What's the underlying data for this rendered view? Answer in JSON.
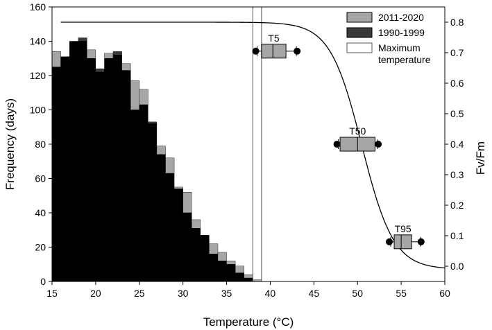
{
  "chart_data": {
    "type": "bar",
    "xlabel": "Temperature (°C)",
    "ylabel": "Frequency (days)",
    "y2label": "Fv/Fm",
    "xlim": [
      15,
      60
    ],
    "ylim": [
      0,
      160
    ],
    "y2lim": [
      -0.05,
      0.85
    ],
    "xticks": [
      15,
      20,
      25,
      30,
      35,
      40,
      45,
      50,
      55,
      60
    ],
    "yticks": [
      0,
      20,
      40,
      60,
      80,
      100,
      120,
      140,
      160
    ],
    "y2ticks": [
      "0.0",
      "0.1",
      "0.2",
      "0.3",
      "0.4",
      "0.5",
      "0.6",
      "0.7",
      "0.8"
    ],
    "legend": {
      "position": "top-right",
      "items": [
        {
          "label": "2011-2020",
          "color": "#a6a6a6",
          "kind": "bar"
        },
        {
          "label": "1990-1999",
          "color": "#3a3a3a",
          "kind": "bar"
        },
        {
          "label": "Maximum\ntemperature",
          "color": "#ffffff",
          "kind": "line"
        }
      ]
    },
    "bins_x": [
      15.5,
      16.5,
      17.5,
      18.5,
      19.5,
      20.5,
      21.5,
      22.5,
      23.5,
      24.5,
      25.5,
      26.5,
      27.5,
      28.5,
      29.5,
      30.5,
      31.5,
      32.5,
      33.5,
      34.5,
      35.5,
      36.5,
      37.5,
      38.5
    ],
    "series": [
      {
        "name": "2011-2020",
        "color": "#a6a6a6",
        "values": [
          134,
          131,
          140,
          140,
          135,
          122,
          133,
          132,
          127,
          117,
          112,
          92,
          79,
          72,
          55,
          52,
          36,
          27,
          22,
          17,
          12,
          9,
          4,
          1
        ]
      },
      {
        "name": "1990-1999",
        "color": "#3a3a3a",
        "values": [
          125,
          131,
          140,
          142,
          130,
          124,
          130,
          134,
          123,
          100,
          103,
          93,
          74,
          63,
          54,
          40,
          31,
          27,
          16,
          12,
          10,
          5,
          2,
          0
        ]
      }
    ],
    "overlap_color": "#000000",
    "max_temperature_lines": [
      38.0,
      39.0
    ],
    "curve": {
      "axis": "y2",
      "top": 0.8,
      "bottom": -0.01,
      "midpoint": 50.5,
      "slope": 0.55,
      "x_start": 16,
      "x_end": 60
    },
    "boxplots": [
      {
        "label": "T5",
        "whisker_low": 38.5,
        "q1": 39.0,
        "median": 40.3,
        "q3": 41.8,
        "whisker_high": 43.0,
        "y": 0.705
      },
      {
        "label": "T50",
        "whisker_low": 47.8,
        "q1": 48.0,
        "median": 50.0,
        "q3": 52.0,
        "whisker_high": 52.3,
        "y": 0.4
      },
      {
        "label": "T95",
        "whisker_low": 53.8,
        "q1": 54.2,
        "median": 55.0,
        "q3": 56.2,
        "whisker_high": 57.2,
        "y": 0.08
      }
    ]
  }
}
